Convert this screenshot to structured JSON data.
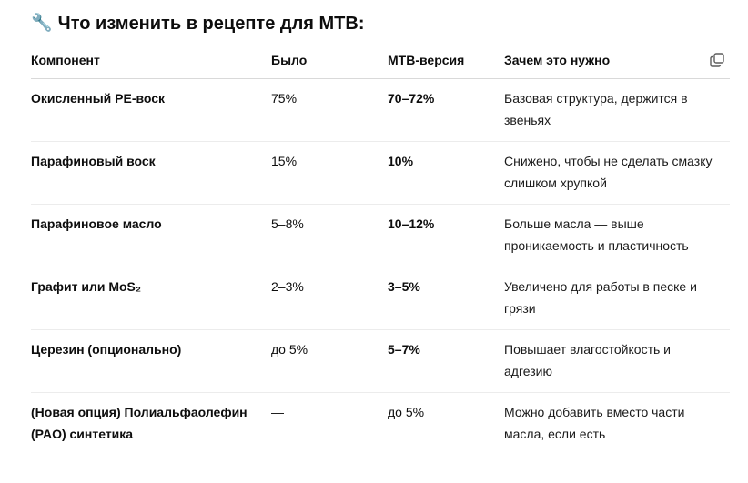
{
  "heading": {
    "icon": "🔧",
    "title": "Что изменить в рецепте для MTB:"
  },
  "table": {
    "columns": [
      "Компонент",
      "Было",
      "MTB-версия",
      "Зачем это нужно"
    ],
    "rows": [
      {
        "component": "Окисленный PE-воск",
        "was": "75%",
        "mtb": "70–72%",
        "why": "Базовая структура, держится в звеньях"
      },
      {
        "component": "Парафиновый воск",
        "was": "15%",
        "mtb": "10%",
        "why": "Снижено, чтобы не сделать смазку слишком хрупкой"
      },
      {
        "component": "Парафиновое масло",
        "was": "5–8%",
        "mtb": "10–12%",
        "why": "Больше масла — выше проникаемость и пластичность"
      },
      {
        "component": "Графит или MoS₂",
        "was": "2–3%",
        "mtb": "3–5%",
        "why": "Увеличено для работы в песке и грязи"
      },
      {
        "component": "Церезин (опционально)",
        "was": "до 5%",
        "mtb": "5–7%",
        "why": "Повышает влагостойкость и адгезию"
      },
      {
        "component": "(Новая опция) Полиальфаолефин (PAO) синтетика",
        "was": "—",
        "mtb": "до 5%",
        "why": "Можно добавить вместо части масла, если есть"
      }
    ]
  },
  "icons": {
    "copy": "copy-icon",
    "heading": "wrench-icon"
  }
}
